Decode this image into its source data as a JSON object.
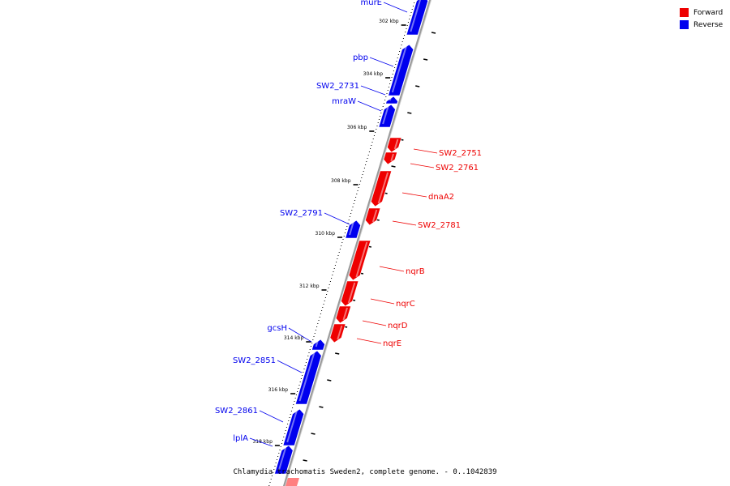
{
  "legend": [
    {
      "label": "Forward",
      "color": "#ee0000"
    },
    {
      "label": "Reverse",
      "color": "#0000ee"
    }
  ],
  "footer": "Chlamydia trachomatis Sweden2, complete genome. - 0..1042839",
  "colors": {
    "forward": "#ee0000",
    "reverse": "#0000ee",
    "backbone": "#9a9a9a"
  },
  "scale": {
    "unit": "kbp",
    "labels": [
      "302 kbp",
      "304 kbp",
      "306 kbp",
      "308 kbp",
      "310 kbp",
      "312 kbp",
      "314 kbp",
      "316 kbp",
      "318 kbp"
    ]
  },
  "genes": [
    {
      "name": "murE",
      "strand": "reverse"
    },
    {
      "name": "pbp",
      "strand": "reverse"
    },
    {
      "name": "SW2_2731",
      "strand": "reverse"
    },
    {
      "name": "mraW",
      "strand": "reverse"
    },
    {
      "name": "SW2_2751",
      "strand": "forward"
    },
    {
      "name": "SW2_2761",
      "strand": "forward"
    },
    {
      "name": "dnaA2",
      "strand": "forward"
    },
    {
      "name": "SW2_2781",
      "strand": "forward"
    },
    {
      "name": "SW2_2791",
      "strand": "reverse"
    },
    {
      "name": "nqrB",
      "strand": "forward"
    },
    {
      "name": "nqrC",
      "strand": "forward"
    },
    {
      "name": "nqrD",
      "strand": "forward"
    },
    {
      "name": "nqrE",
      "strand": "forward"
    },
    {
      "name": "gcsH",
      "strand": "reverse"
    },
    {
      "name": "SW2_2851",
      "strand": "reverse"
    },
    {
      "name": "SW2_2861",
      "strand": "reverse"
    },
    {
      "name": "lplA",
      "strand": "reverse"
    }
  ]
}
